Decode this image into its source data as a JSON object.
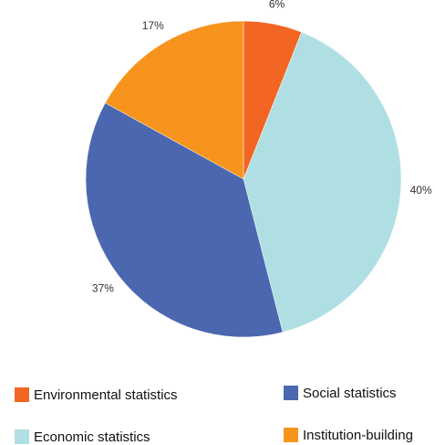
{
  "chart_data": {
    "type": "pie",
    "title": "",
    "slices": [
      {
        "label": "Environmental statistics",
        "value": 6,
        "display": "6%",
        "color": "#f26522"
      },
      {
        "label": "Economic statistics",
        "value": 40,
        "display": "40%",
        "color": "#b0dfe3"
      },
      {
        "label": "Social statistics",
        "value": 37,
        "display": "37%",
        "color": "#4a67b0"
      },
      {
        "label": "Institution-building",
        "value": 17,
        "display": "17%",
        "color": "#f7941d"
      }
    ],
    "legend_placement": "bottom",
    "legend": [
      {
        "label": "Environmental statistics",
        "color": "#f26522"
      },
      {
        "label": "Social statistics",
        "color": "#4a67b0"
      },
      {
        "label": "Economic statistics",
        "color": "#b0dfe3"
      },
      {
        "label": "Institution-building",
        "color": "#f7941d"
      }
    ]
  }
}
